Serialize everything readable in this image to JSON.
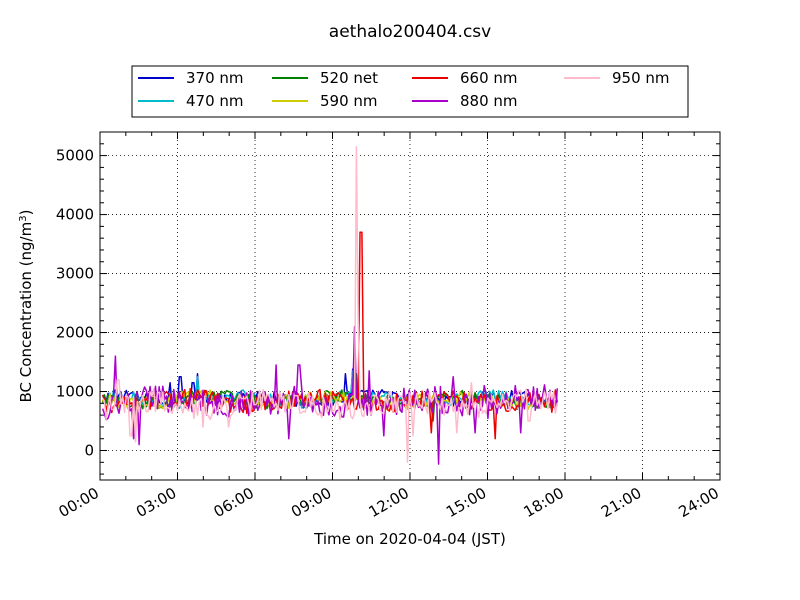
{
  "chart_data": {
    "type": "line",
    "title": "aethalo200404.csv",
    "xlabel": "Time on 2020-04-04 (JST)",
    "ylabel_main": "BC Concentration (ng/m",
    "ylabel_sup": "3",
    "ylabel_close": ")",
    "x_unit": "hours",
    "xlim": [
      0,
      24
    ],
    "ylim": [
      -500,
      5400
    ],
    "xticks": [
      0,
      3,
      6,
      9,
      12,
      15,
      18,
      21,
      24
    ],
    "xtick_labels": [
      "00:00",
      "03:00",
      "06:00",
      "09:00",
      "12:00",
      "15:00",
      "18:00",
      "21:00",
      "24:00"
    ],
    "yticks": [
      0,
      1000,
      2000,
      3000,
      4000,
      5000
    ],
    "ytick_labels": [
      "0",
      "1000",
      "2000",
      "3000",
      "4000",
      "5000"
    ],
    "grid": true,
    "legend_position": "top-center",
    "series": [
      {
        "name": "370 nm",
        "color": "#0000cc",
        "base": 880,
        "amp": 120,
        "phase": 0.3,
        "peaks": [
          [
            2.7,
            1150
          ],
          [
            3.1,
            1250
          ],
          [
            3.6,
            1150
          ],
          [
            3.8,
            1300
          ],
          [
            9.5,
            1300
          ],
          [
            9.8,
            1380
          ]
        ]
      },
      {
        "name": "470 nm",
        "color": "#00bbcc",
        "base": 870,
        "amp": 130,
        "phase": 1.1,
        "peaks": [
          [
            3.8,
            1250
          ],
          [
            9.8,
            1350
          ],
          [
            12.5,
            750
          ]
        ]
      },
      {
        "name": "520 net",
        "color": "#008000",
        "base": 860,
        "amp": 140,
        "phase": 2.0,
        "peaks": [
          [
            9.9,
            1300
          ],
          [
            10.0,
            850
          ],
          [
            12.9,
            500
          ]
        ]
      },
      {
        "name": "590 nm",
        "color": "#cccc00",
        "base": 850,
        "amp": 150,
        "phase": 2.7,
        "peaks": [
          [
            9.85,
            1300
          ]
        ]
      },
      {
        "name": "660 nm",
        "color": "#ee0000",
        "base": 840,
        "amp": 190,
        "phase": 3.5,
        "peaks": [
          [
            10.1,
            3700
          ],
          [
            10.2,
            900
          ],
          [
            12.8,
            300
          ],
          [
            15.3,
            200
          ],
          [
            17.5,
            650
          ]
        ]
      },
      {
        "name": "880 nm",
        "color": "#aa00cc",
        "base": 820,
        "amp": 300,
        "phase": 4.4,
        "peaks": [
          [
            0.6,
            1600
          ],
          [
            1.3,
            200
          ],
          [
            1.5,
            100
          ],
          [
            4.3,
            800
          ],
          [
            6.8,
            1450
          ],
          [
            7.3,
            200
          ],
          [
            7.7,
            1450
          ],
          [
            9.85,
            2100
          ],
          [
            10.4,
            1350
          ],
          [
            11.0,
            250
          ],
          [
            11.7,
            650
          ],
          [
            13.1,
            -230
          ],
          [
            13.7,
            1250
          ],
          [
            14.5,
            300
          ],
          [
            14.9,
            1100
          ],
          [
            16.1,
            1100
          ],
          [
            16.3,
            300
          ],
          [
            16.9,
            1050
          ]
        ]
      },
      {
        "name": "950 nm",
        "color": "#ffbbcc",
        "base": 780,
        "amp": 260,
        "phase": 5.3,
        "peaks": [
          [
            0.7,
            1200
          ],
          [
            1.2,
            250
          ],
          [
            1.4,
            150
          ],
          [
            4.0,
            400
          ],
          [
            5.0,
            400
          ],
          [
            9.9,
            5150
          ],
          [
            10.0,
            2200
          ],
          [
            11.9,
            -200
          ],
          [
            12.1,
            250
          ],
          [
            13.3,
            600
          ],
          [
            13.8,
            300
          ],
          [
            14.4,
            1150
          ],
          [
            16.2,
            1000
          ],
          [
            16.6,
            500
          ]
        ]
      }
    ],
    "x_start": 0.1,
    "x_end": 17.7,
    "n_points": 250
  }
}
